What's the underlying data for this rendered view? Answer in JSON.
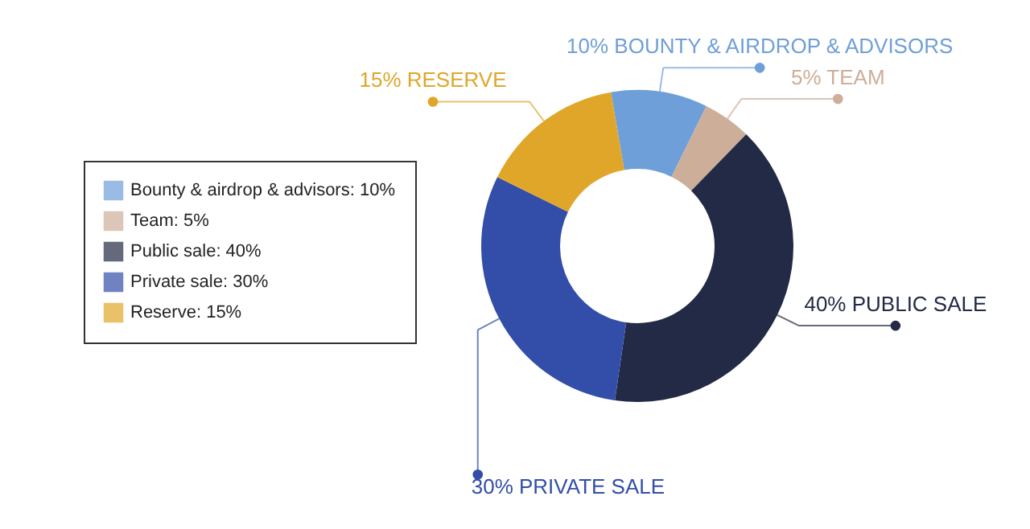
{
  "chart_data": {
    "type": "donut",
    "categories": [
      "Bounty & airdrop & advisors: 10%",
      "Team: 5%",
      "Public sale: 40%",
      "Private sale: 30%",
      "Reserve: 15%"
    ],
    "values": [
      10,
      5,
      40,
      30,
      15
    ],
    "colors": [
      "#6f9fd8",
      "#cdae98",
      "#222a45",
      "#324ea8",
      "#e0a62a"
    ],
    "value_labels": [
      "10%  BOUNTY & AIRDROP & ADVISORS",
      "5% TEAM",
      "40% PUBLIC SALE",
      "30% PRIVATE SALE",
      "15% RESERVE"
    ],
    "legend": "left"
  }
}
